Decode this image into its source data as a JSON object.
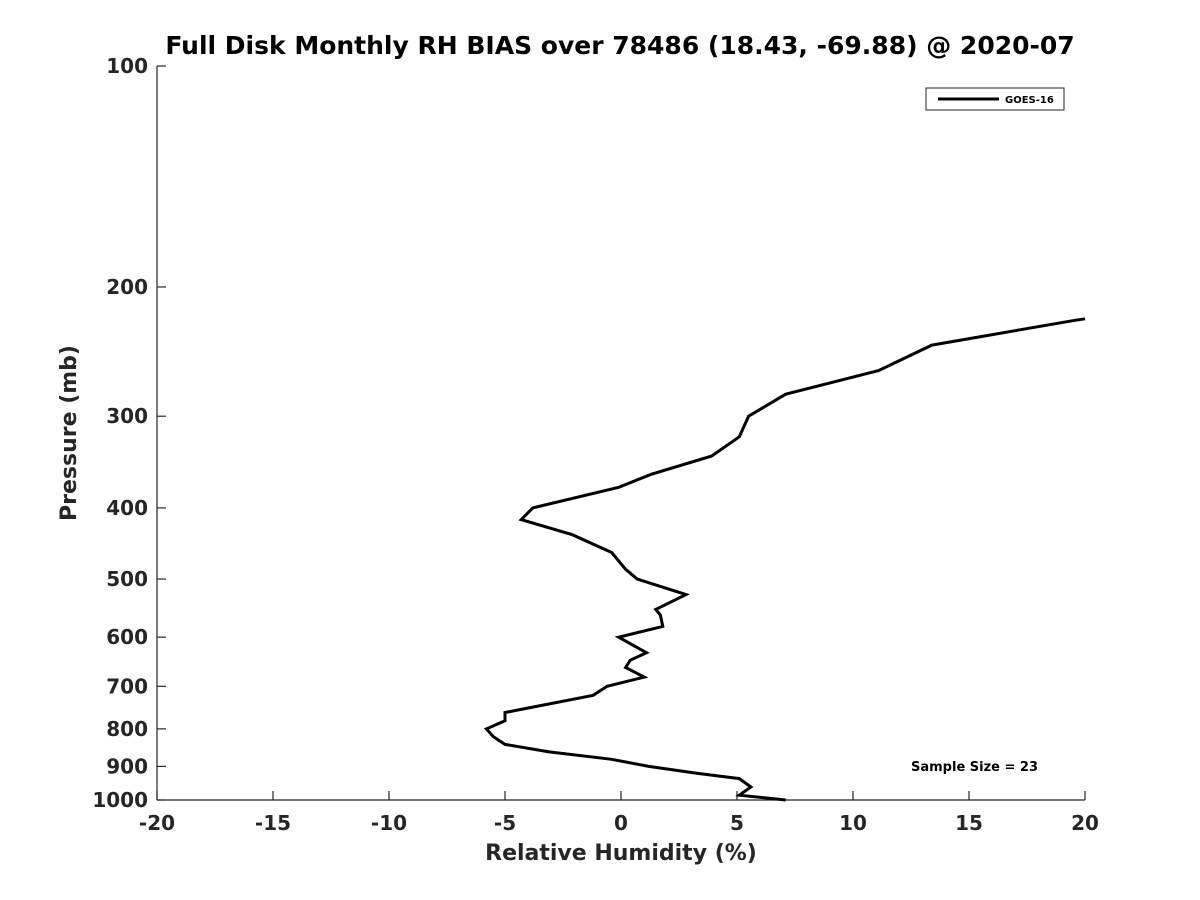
{
  "chart_data": {
    "type": "line",
    "title": "Full Disk Monthly RH BIAS over 78486 (18.43, -69.88) @ 2020-07",
    "xlabel": "Relative Humidity (%)",
    "ylabel": "Pressure (mb)",
    "xlim": [
      -20,
      20
    ],
    "ylim": [
      100,
      1000
    ],
    "y_scale": "log",
    "y_reversed": true,
    "x_ticks": [
      -20,
      -15,
      -10,
      -5,
      0,
      5,
      10,
      15,
      20
    ],
    "x_tick_labels": [
      "-20",
      "-15",
      "-10",
      "-5",
      "0",
      "5",
      "10",
      "15",
      "20"
    ],
    "y_ticks": [
      100,
      200,
      300,
      400,
      500,
      600,
      700,
      800,
      900,
      1000
    ],
    "y_tick_labels": [
      "100",
      "200",
      "300",
      "400",
      "500",
      "600",
      "700",
      "800",
      "900",
      "1000"
    ],
    "grid": false,
    "legend": {
      "position": "top-right",
      "entries": [
        "GOES-16"
      ]
    },
    "annotation": "Sample Size = 23",
    "colors": {
      "series": "#000000",
      "axes": "#262626"
    },
    "series": [
      {
        "name": "GOES-16",
        "points": [
          {
            "x": 7.1,
            "y": 1000
          },
          {
            "x": 5.1,
            "y": 985
          },
          {
            "x": 5.6,
            "y": 960
          },
          {
            "x": 5.1,
            "y": 935
          },
          {
            "x": 3.3,
            "y": 920
          },
          {
            "x": 1.2,
            "y": 900
          },
          {
            "x": -0.4,
            "y": 880
          },
          {
            "x": -3.1,
            "y": 860
          },
          {
            "x": -5.0,
            "y": 840
          },
          {
            "x": -5.5,
            "y": 820
          },
          {
            "x": -5.8,
            "y": 800
          },
          {
            "x": -5.0,
            "y": 780
          },
          {
            "x": -5.0,
            "y": 760
          },
          {
            "x": -1.2,
            "y": 720
          },
          {
            "x": -0.6,
            "y": 700
          },
          {
            "x": 1.0,
            "y": 680
          },
          {
            "x": 0.2,
            "y": 660
          },
          {
            "x": 0.4,
            "y": 645
          },
          {
            "x": 1.1,
            "y": 630
          },
          {
            "x": -0.1,
            "y": 600
          },
          {
            "x": 1.8,
            "y": 580
          },
          {
            "x": 1.7,
            "y": 560
          },
          {
            "x": 1.5,
            "y": 550
          },
          {
            "x": 2.8,
            "y": 525
          },
          {
            "x": 0.7,
            "y": 500
          },
          {
            "x": 0.2,
            "y": 485
          },
          {
            "x": -0.4,
            "y": 460
          },
          {
            "x": -2.1,
            "y": 435
          },
          {
            "x": -4.3,
            "y": 415
          },
          {
            "x": -3.8,
            "y": 400
          },
          {
            "x": -0.1,
            "y": 375
          },
          {
            "x": 1.3,
            "y": 360
          },
          {
            "x": 3.9,
            "y": 340
          },
          {
            "x": 5.1,
            "y": 320
          },
          {
            "x": 5.5,
            "y": 300
          },
          {
            "x": 7.1,
            "y": 280
          },
          {
            "x": 11.1,
            "y": 260
          },
          {
            "x": 13.4,
            "y": 240
          },
          {
            "x": 19.6,
            "y": 222
          },
          {
            "x": 20.0,
            "y": 221
          }
        ]
      }
    ]
  }
}
